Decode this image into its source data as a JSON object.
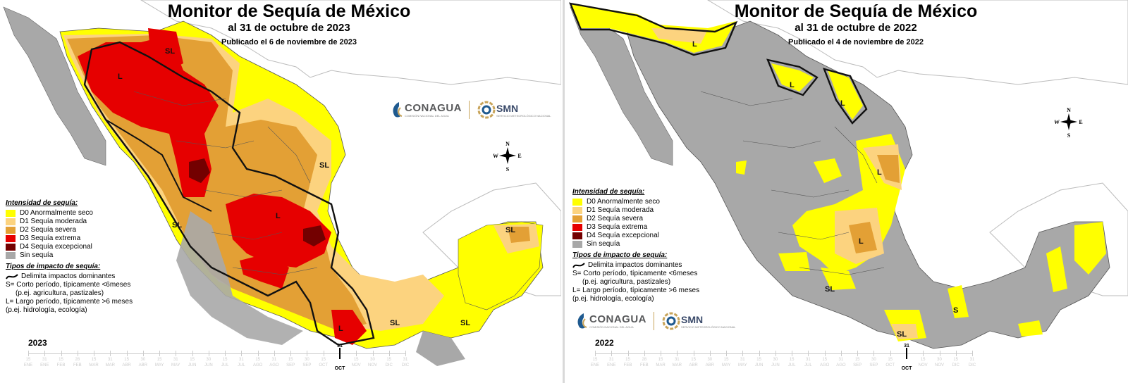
{
  "legend": {
    "intensity_header": "Intensidad de sequía:",
    "items": [
      {
        "label": "D0 Anormalmente seco",
        "color": "#ffff00"
      },
      {
        "label": "D1 Sequía moderada",
        "color": "#fcd37f"
      },
      {
        "label": "D2 Sequía severa",
        "color": "#e3a035"
      },
      {
        "label": "D3 Sequía extrema",
        "color": "#e60000"
      },
      {
        "label": "D4 Sequía excepcional",
        "color": "#730000"
      },
      {
        "label": "Sin sequía",
        "color": "#a8a8a8"
      }
    ],
    "impact_header": "Tipos de impacto de sequía:",
    "impact_line": "Delimita impactos dominantes",
    "short_term": "S= Corto período, típicamente <6meses",
    "short_term_example": "(p.ej. agricultura, pastizales)",
    "long_term": "L= Largo período, típicamente >6 meses",
    "long_term_example": "(p.ej. hidrología, ecología)"
  },
  "logos": {
    "conagua": "CONAGUA",
    "conagua_sub": "COMISIÓN NACIONAL DEL AGUA",
    "smn": "SMN",
    "smn_sub": "SERVICIO METEOROLÓGICO NACIONAL"
  },
  "compass": {
    "n": "N",
    "s": "S",
    "e": "E",
    "w": "W"
  },
  "timeline": {
    "days": [
      "15",
      "31",
      "15",
      "28",
      "15",
      "31",
      "15",
      "30",
      "15",
      "31",
      "15",
      "30",
      "15",
      "31",
      "15",
      "31",
      "15",
      "30",
      "15",
      "31",
      "15",
      "30",
      "15",
      "31"
    ],
    "months": [
      "ENE",
      "ENE",
      "FEB",
      "FEB",
      "MAR",
      "MAR",
      "ABR",
      "ABR",
      "MAY",
      "MAY",
      "JUN",
      "JUN",
      "JUL",
      "JUL",
      "AGO",
      "AGO",
      "SEP",
      "SEP",
      "OCT",
      "OCT",
      "NOV",
      "NOV",
      "DIC",
      "DIC"
    ],
    "current_day": "31",
    "current_month": "OCT"
  },
  "maps": [
    {
      "year": "2023",
      "title": "Monitor de Sequía de México",
      "subtitle": "al 31 de octubre de 2023",
      "published": "Publicado el 6 de noviembre de 2023",
      "impact_labels": [
        "SL",
        "L",
        "SL",
        "SL",
        "L",
        "SL",
        "L",
        "SL",
        "SL"
      ]
    },
    {
      "year": "2022",
      "title": "Monitor de Sequía de México",
      "subtitle": "al 31 de octubre de 2022",
      "published": "Publicado el 4 de noviembre de 2022",
      "impact_labels": [
        "L",
        "L",
        "L",
        "L",
        "L",
        "SL",
        "SL",
        "S",
        "SL"
      ]
    }
  ]
}
